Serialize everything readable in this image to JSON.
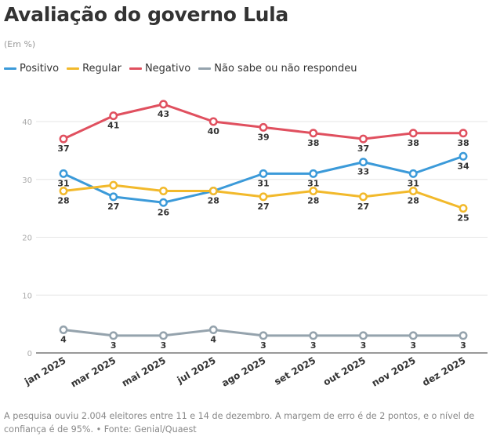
{
  "chart_data": {
    "type": "line",
    "title": "Avaliação do governo Lula",
    "subtitle": "(Em %)",
    "xlabel": "",
    "ylabel": "",
    "ylim": [
      0,
      45
    ],
    "yticks": [
      0,
      10,
      20,
      30,
      40
    ],
    "grid": true,
    "legend_position": "top-left",
    "categories": [
      "jan 2025",
      "mar 2025",
      "mai 2025",
      "jul 2025",
      "ago 2025",
      "set 2025",
      "out 2025",
      "nov 2025",
      "dez 2025"
    ],
    "series": [
      {
        "name": "Positivo",
        "color": "#3b9ad9",
        "values": [
          31,
          27,
          26,
          28,
          31,
          31,
          33,
          31,
          34
        ]
      },
      {
        "name": "Regular",
        "color": "#f2b92b",
        "values": [
          28,
          29,
          28,
          28,
          27,
          28,
          27,
          28,
          25
        ]
      },
      {
        "name": "Negativo",
        "color": "#e0505f",
        "values": [
          37,
          41,
          43,
          40,
          39,
          38,
          37,
          38,
          38
        ]
      },
      {
        "name": "Não sabe ou não respondeu",
        "color": "#95a3ad",
        "values": [
          4,
          3,
          3,
          4,
          3,
          3,
          3,
          3,
          3
        ]
      }
    ],
    "labels_shown": {
      "Positivo": [
        31,
        27,
        26,
        null,
        31,
        31,
        33,
        31,
        34
      ],
      "Regular": [
        28,
        null,
        null,
        28,
        27,
        28,
        27,
        28,
        25
      ],
      "Negativo": [
        37,
        41,
        43,
        40,
        39,
        38,
        37,
        38,
        38
      ],
      "Não sabe ou não respondeu": [
        4,
        3,
        3,
        4,
        3,
        3,
        3,
        3,
        3
      ]
    },
    "note": "A pesquisa ouviu 2.004 eleitores entre 11 e 14 de dezembro. A margem de erro é de 2 pontos, e o nível de confiança é de 95%. • Fonte: Genial/Quaest"
  }
}
